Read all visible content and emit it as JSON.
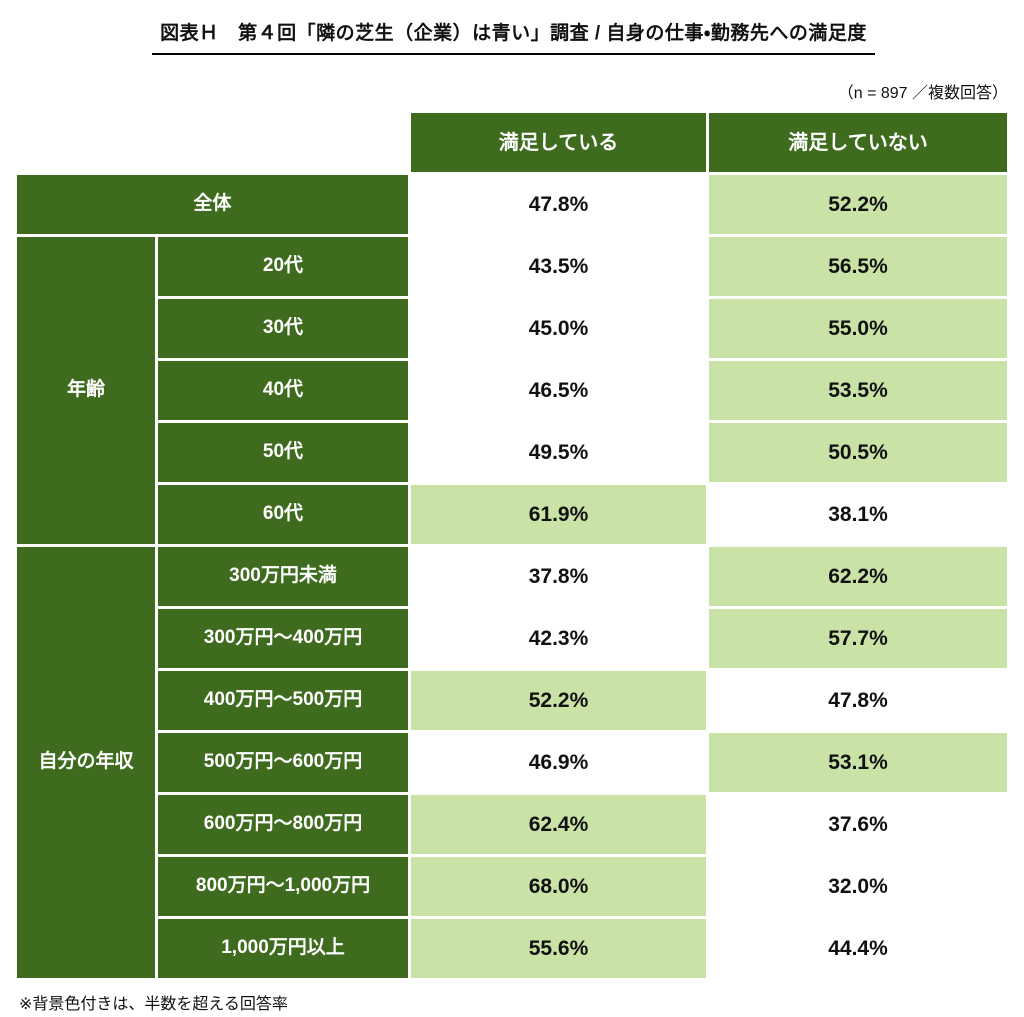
{
  "page": {
    "title": "図表Ｈ　第４回「隣の芝生（企業）は青い」調査 / 自身の仕事・勤務先への満足度",
    "sample_note": "（n = 897 ／複数回答）",
    "footnote": "※背景色付きは、半数を超える回答率"
  },
  "colors": {
    "dark_green": "#3e6b1e",
    "light_green": "#c9e2a6"
  },
  "chart_data": {
    "type": "table",
    "title": "第４回「隣の芝生（企業）は青い」調査 / 自身の仕事・勤務先への満足度",
    "n": 897,
    "columns": [
      "満足している",
      "満足していない"
    ],
    "overall": {
      "label": "全体",
      "values": [
        "47.8%",
        "52.2%"
      ]
    },
    "groups": [
      {
        "name": "年齢",
        "rows": [
          {
            "label": "20代",
            "values": [
              "43.5%",
              "56.5%"
            ]
          },
          {
            "label": "30代",
            "values": [
              "45.0%",
              "55.0%"
            ]
          },
          {
            "label": "40代",
            "values": [
              "46.5%",
              "53.5%"
            ]
          },
          {
            "label": "50代",
            "values": [
              "49.5%",
              "50.5%"
            ]
          },
          {
            "label": "60代",
            "values": [
              "61.9%",
              "38.1%"
            ]
          }
        ]
      },
      {
        "name": "自分の年収",
        "rows": [
          {
            "label": "300万円未満",
            "values": [
              "37.8%",
              "62.2%"
            ]
          },
          {
            "label": "300万円～400万円",
            "values": [
              "42.3%",
              "57.7%"
            ]
          },
          {
            "label": "400万円～500万円",
            "values": [
              "52.2%",
              "47.8%"
            ]
          },
          {
            "label": "500万円～600万円",
            "values": [
              "46.9%",
              "53.1%"
            ]
          },
          {
            "label": "600万円～800万円",
            "values": [
              "62.4%",
              "37.6%"
            ]
          },
          {
            "label": "800万円～1,000万円",
            "values": [
              "68.0%",
              "32.0%"
            ]
          },
          {
            "label": "1,000万円以上",
            "values": [
              "55.6%",
              "44.4%"
            ]
          }
        ]
      }
    ],
    "highlight_rule": "背景色付き＝50%を超える回答率",
    "highlight_threshold": 50
  }
}
